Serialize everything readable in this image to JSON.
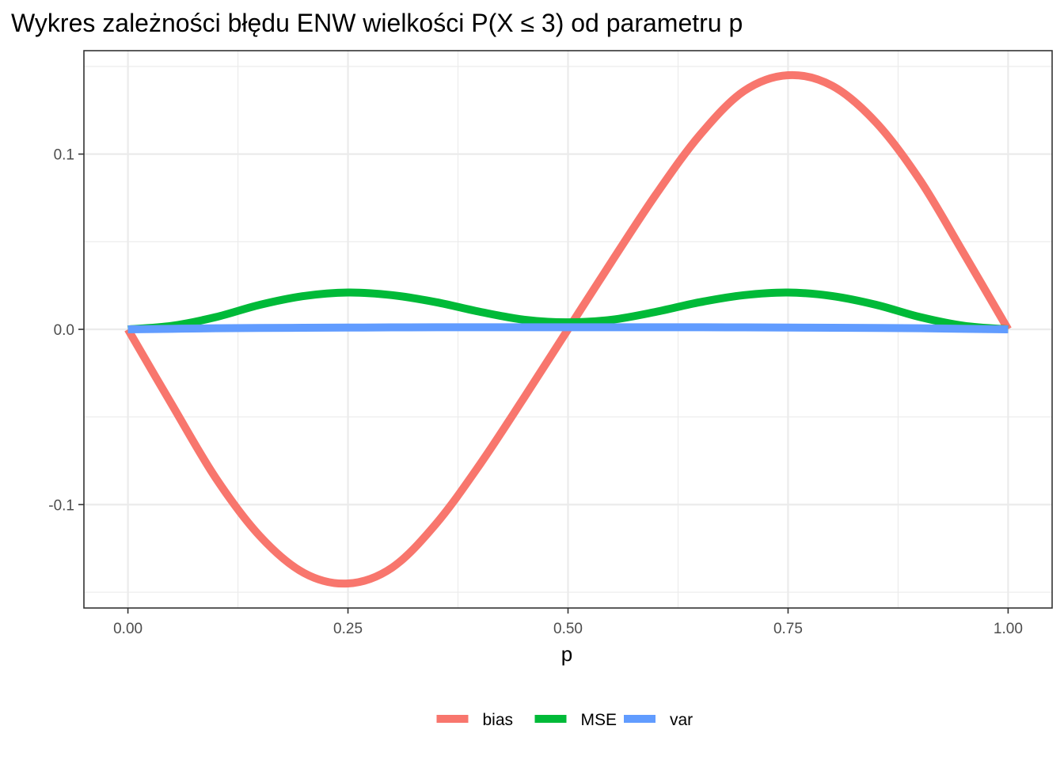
{
  "chart_data": {
    "type": "line",
    "title": "Wykres zależności błędu ENW wielkości P(X ≤ 3) od parametru p",
    "xlabel": "p",
    "ylabel": "",
    "xlim": [
      -0.05,
      1.05
    ],
    "ylim": [
      -0.159,
      0.159
    ],
    "x_ticks": [
      0.0,
      0.25,
      0.5,
      0.75,
      1.0
    ],
    "x_tick_labels": [
      "0.00",
      "0.25",
      "0.50",
      "0.75",
      "1.00"
    ],
    "y_ticks": [
      -0.1,
      0.0,
      0.1
    ],
    "y_tick_labels": [
      "-0.1",
      "0.0",
      "0.1"
    ],
    "grid": true,
    "legend_position": "bottom",
    "x": [
      0,
      0.05,
      0.1,
      0.15,
      0.2,
      0.25,
      0.3,
      0.35,
      0.4,
      0.45,
      0.5,
      0.55,
      0.6,
      0.65,
      0.7,
      0.75,
      0.8,
      0.85,
      0.9,
      0.95,
      1.0
    ],
    "series": [
      {
        "name": "bias",
        "color": "#F8766D",
        "values": [
          0,
          -0.043,
          -0.085,
          -0.118,
          -0.139,
          -0.145,
          -0.136,
          -0.111,
          -0.077,
          -0.039,
          0,
          0.039,
          0.077,
          0.111,
          0.136,
          0.145,
          0.139,
          0.118,
          0.085,
          0.043,
          0
        ]
      },
      {
        "name": "MSE",
        "color": "#00BA38",
        "values": [
          0,
          0.002,
          0.007,
          0.014,
          0.019,
          0.021,
          0.0195,
          0.0155,
          0.01,
          0.0055,
          0.004,
          0.0055,
          0.01,
          0.0155,
          0.0195,
          0.021,
          0.019,
          0.014,
          0.007,
          0.002,
          0
        ]
      },
      {
        "name": "var",
        "color": "#619CFF",
        "values": [
          0,
          0.0003,
          0.0006,
          0.0008,
          0.0009,
          0.001,
          0.0011,
          0.0012,
          0.0012,
          0.0012,
          0.0012,
          0.0012,
          0.0012,
          0.0012,
          0.0011,
          0.001,
          0.0009,
          0.0008,
          0.0006,
          0.0003,
          0
        ]
      }
    ]
  }
}
